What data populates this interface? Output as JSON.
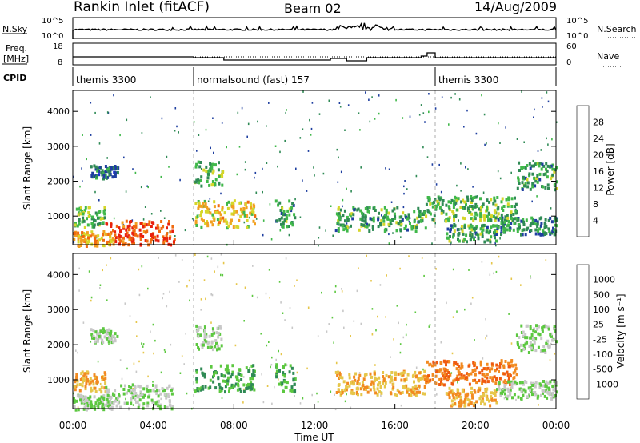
{
  "chart_data": {
    "type": "heatmap",
    "title": "Rankin Inlet (fitACF)",
    "beam": "Beam 02",
    "date": "14/Aug/2009",
    "xlabel": "Time UT",
    "x_ticks": [
      "00:00",
      "04:00",
      "08:00",
      "12:00",
      "16:00",
      "20:00",
      "00:00"
    ],
    "xlim_hours": [
      0,
      24
    ],
    "header": {
      "nsky_label": "N.Sky",
      "nsky_ticks": [
        "10^5",
        "10^0"
      ],
      "nsearch_label": "N.Search",
      "nsearch_ticks": [
        "10^5",
        "10^0"
      ],
      "freq_label_1": "Freq.",
      "freq_label_2": "[MHz]",
      "freq_ticks": [
        "18",
        "8"
      ],
      "nave_label": "Nave",
      "nave_ticks": [
        "60",
        "0"
      ],
      "cpid_label": "CPID",
      "cpid_segments": [
        {
          "start_h": 0,
          "end_h": 6,
          "label": "themis 3300"
        },
        {
          "start_h": 6,
          "end_h": 18,
          "label": "normalsound (fast) 157"
        },
        {
          "start_h": 18,
          "end_h": 24,
          "label": "themis 3300"
        }
      ]
    },
    "panels": [
      {
        "name": "power",
        "ylabel": "Slant Range [km]",
        "y_ticks": [
          "1000",
          "2000",
          "3000",
          "4000"
        ],
        "ylim_km": [
          180,
          4600
        ],
        "colorbar_label": "Power [dB]",
        "colorbar_ticks": [
          "4",
          "8",
          "12",
          "16",
          "20",
          "24",
          "28"
        ],
        "colors": [
          "#1f2fd8",
          "#1f3fa0",
          "#2f8a55",
          "#40b84a",
          "#d6d62a",
          "#f2a020",
          "#ef6b10",
          "#e8200e"
        ]
      },
      {
        "name": "velocity",
        "ylabel": "Slant Range [km]",
        "y_ticks": [
          "1000",
          "2000",
          "3000",
          "4000"
        ],
        "ylim_km": [
          180,
          4600
        ],
        "colorbar_label": "Velocity [m s⁻¹]",
        "colorbar_ticks": [
          "1000",
          "500",
          "100",
          "25",
          "-25",
          "-100",
          "-500",
          "-1000"
        ],
        "colors": [
          "#1f2fd8",
          "#2a58b0",
          "#2f8a55",
          "#5cc840",
          "#c8c8c8",
          "#e6c64a",
          "#f28a20",
          "#ef5a10",
          "#e8200e"
        ]
      }
    ],
    "echo_regions": [
      {
        "t0": 0.0,
        "t1": 1.6,
        "r0": 700,
        "r1": 1300,
        "power_db": 14,
        "velocity": -100
      },
      {
        "t0": 1.6,
        "t1": 5.0,
        "r0": 200,
        "r1": 900,
        "power_db": 28,
        "velocity": 25
      },
      {
        "t0": 0.0,
        "t1": 2.0,
        "r0": 180,
        "r1": 600,
        "power_db": 22,
        "velocity": 25
      },
      {
        "t0": 0.8,
        "t1": 2.2,
        "r0": 2100,
        "r1": 2500,
        "power_db": 8,
        "velocity": 25
      },
      {
        "t0": 6.0,
        "t1": 7.4,
        "r0": 1900,
        "r1": 2600,
        "power_db": 14,
        "velocity": 25
      },
      {
        "t0": 6.0,
        "t1": 9.0,
        "r0": 700,
        "r1": 1500,
        "power_db": 20,
        "velocity": 100
      },
      {
        "t0": 10.0,
        "t1": 11.0,
        "r0": 700,
        "r1": 1500,
        "power_db": 12,
        "velocity": 100
      },
      {
        "t0": 13.0,
        "t1": 17.5,
        "r0": 600,
        "r1": 1300,
        "power_db": 12,
        "velocity": -100
      },
      {
        "t0": 17.5,
        "t1": 22.0,
        "r0": 900,
        "r1": 1600,
        "power_db": 14,
        "velocity": -500
      },
      {
        "t0": 18.5,
        "t1": 21.0,
        "r0": 300,
        "r1": 800,
        "power_db": 12,
        "velocity": -100
      },
      {
        "t0": 22.0,
        "t1": 24.0,
        "r0": 1800,
        "r1": 2600,
        "power_db": 12,
        "velocity": 25
      },
      {
        "t0": 21.0,
        "t1": 24.0,
        "r0": 500,
        "r1": 1000,
        "power_db": 10,
        "velocity": 25
      }
    ]
  }
}
